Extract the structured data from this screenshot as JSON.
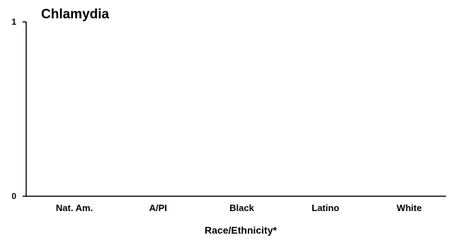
{
  "chart_data": {
    "type": "bar",
    "title": "Chlamydia",
    "xlabel": "Race/Ethnicity*",
    "ylabel": "",
    "categories": [
      "Nat. Am.",
      "A/PI",
      "Black",
      "Latino",
      "White"
    ],
    "values": [
      0,
      0,
      0,
      0,
      0
    ],
    "ylim": [
      0,
      1
    ],
    "yticks": [
      0,
      1
    ],
    "grid": false,
    "legend": "none",
    "colors": {
      "axis": "#000000",
      "bar": "#000000",
      "background": "#ffffff"
    }
  }
}
